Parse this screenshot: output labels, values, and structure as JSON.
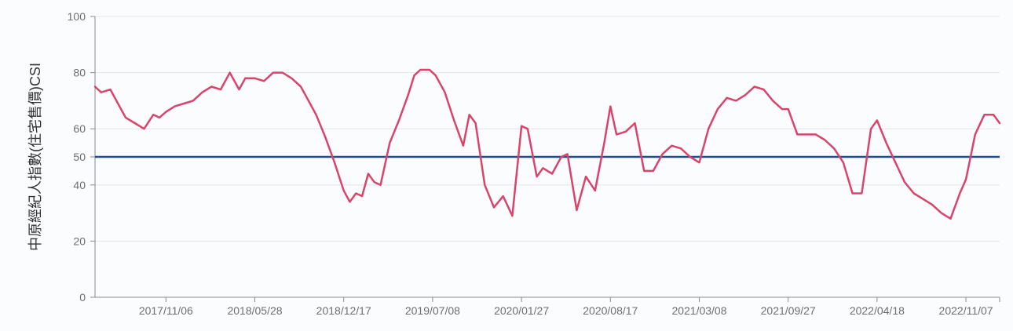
{
  "chart_data": {
    "type": "line",
    "title": "",
    "xlabel": "",
    "ylabel": "中原經紀人指數(住宅售價)CSI",
    "ylim": [
      0,
      100
    ],
    "yticks": [
      0,
      20,
      40,
      50,
      60,
      80,
      100
    ],
    "xticks": [
      "2017/11/06",
      "2018/05/28",
      "2018/12/17",
      "2019/07/08",
      "2020/01/27",
      "2020/08/17",
      "2021/03/08",
      "2021/09/27",
      "2022/04/18",
      "2022/11/07"
    ],
    "grid": true,
    "reference_line": {
      "value": 50,
      "color": "#1f4e8c"
    },
    "series": [
      {
        "color": "#d9456a",
        "points": [
          [
            "2017/05/28",
            75
          ],
          [
            "2017/06/11",
            73
          ],
          [
            "2017/07/02",
            74
          ],
          [
            "2017/07/23",
            68
          ],
          [
            "2017/08/06",
            64
          ],
          [
            "2017/08/27",
            62
          ],
          [
            "2017/09/17",
            60
          ],
          [
            "2017/10/08",
            65
          ],
          [
            "2017/10/22",
            64
          ],
          [
            "2017/11/06",
            66
          ],
          [
            "2017/11/26",
            68
          ],
          [
            "2017/12/17",
            69
          ],
          [
            "2018/01/07",
            70
          ],
          [
            "2018/01/28",
            73
          ],
          [
            "2018/02/18",
            75
          ],
          [
            "2018/03/11",
            74
          ],
          [
            "2018/04/01",
            80
          ],
          [
            "2018/04/22",
            74
          ],
          [
            "2018/05/06",
            78
          ],
          [
            "2018/05/28",
            78
          ],
          [
            "2018/06/18",
            77
          ],
          [
            "2018/07/09",
            80
          ],
          [
            "2018/07/30",
            80
          ],
          [
            "2018/08/20",
            78
          ],
          [
            "2018/09/10",
            75
          ],
          [
            "2018/09/24",
            71
          ],
          [
            "2018/10/15",
            65
          ],
          [
            "2018/11/05",
            57
          ],
          [
            "2018/11/26",
            48
          ],
          [
            "2018/12/17",
            38
          ],
          [
            "2018/12/31",
            34
          ],
          [
            "2019/01/14",
            37
          ],
          [
            "2019/01/28",
            36
          ],
          [
            "2019/02/11",
            44
          ],
          [
            "2019/02/25",
            41
          ],
          [
            "2019/03/11",
            40
          ],
          [
            "2019/04/01",
            55
          ],
          [
            "2019/04/22",
            63
          ],
          [
            "2019/05/13",
            72
          ],
          [
            "2019/05/27",
            79
          ],
          [
            "2019/06/10",
            81
          ],
          [
            "2019/07/01",
            81
          ],
          [
            "2019/07/15",
            79
          ],
          [
            "2019/08/05",
            73
          ],
          [
            "2019/08/26",
            63
          ],
          [
            "2019/09/16",
            54
          ],
          [
            "2019/09/30",
            65
          ],
          [
            "2019/10/14",
            62
          ],
          [
            "2019/11/04",
            40
          ],
          [
            "2019/11/25",
            32
          ],
          [
            "2019/12/16",
            36
          ],
          [
            "2020/01/06",
            29
          ],
          [
            "2020/01/27",
            61
          ],
          [
            "2020/02/10",
            60
          ],
          [
            "2020/03/02",
            43
          ],
          [
            "2020/03/16",
            46
          ],
          [
            "2020/04/06",
            44
          ],
          [
            "2020/04/27",
            50
          ],
          [
            "2020/05/11",
            51
          ],
          [
            "2020/06/01",
            31
          ],
          [
            "2020/06/22",
            43
          ],
          [
            "2020/07/13",
            38
          ],
          [
            "2020/08/03",
            55
          ],
          [
            "2020/08/17",
            68
          ],
          [
            "2020/08/31",
            58
          ],
          [
            "2020/09/21",
            59
          ],
          [
            "2020/10/12",
            62
          ],
          [
            "2020/11/02",
            45
          ],
          [
            "2020/11/23",
            45
          ],
          [
            "2020/12/14",
            51
          ],
          [
            "2021/01/04",
            54
          ],
          [
            "2021/01/25",
            53
          ],
          [
            "2021/02/15",
            50
          ],
          [
            "2021/03/08",
            48
          ],
          [
            "2021/03/29",
            60
          ],
          [
            "2021/04/19",
            67
          ],
          [
            "2021/05/10",
            71
          ],
          [
            "2021/05/31",
            70
          ],
          [
            "2021/06/21",
            72
          ],
          [
            "2021/07/12",
            75
          ],
          [
            "2021/08/02",
            74
          ],
          [
            "2021/08/23",
            70
          ],
          [
            "2021/09/13",
            67
          ],
          [
            "2021/09/27",
            67
          ],
          [
            "2021/10/18",
            58
          ],
          [
            "2021/11/08",
            58
          ],
          [
            "2021/11/29",
            58
          ],
          [
            "2021/12/20",
            56
          ],
          [
            "2022/01/10",
            53
          ],
          [
            "2022/01/31",
            48
          ],
          [
            "2022/02/21",
            37
          ],
          [
            "2022/03/14",
            37
          ],
          [
            "2022/04/04",
            60
          ],
          [
            "2022/04/18",
            63
          ],
          [
            "2022/05/09",
            55
          ],
          [
            "2022/05/30",
            48
          ],
          [
            "2022/06/20",
            41
          ],
          [
            "2022/07/11",
            37
          ],
          [
            "2022/08/01",
            35
          ],
          [
            "2022/08/22",
            33
          ],
          [
            "2022/09/12",
            30
          ],
          [
            "2022/10/03",
            28
          ],
          [
            "2022/10/24",
            37
          ],
          [
            "2022/11/07",
            42
          ],
          [
            "2022/11/28",
            58
          ],
          [
            "2022/12/19",
            65
          ],
          [
            "2023/01/09",
            65
          ],
          [
            "2023/01/23",
            62
          ]
        ]
      }
    ]
  }
}
